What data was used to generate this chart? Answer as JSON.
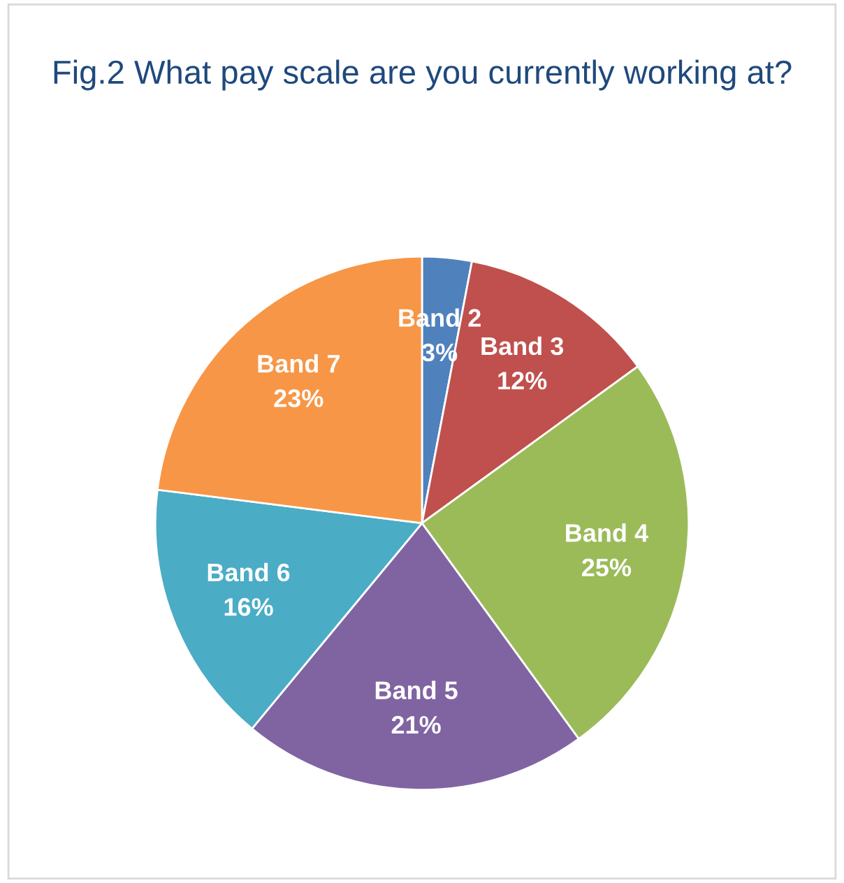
{
  "chart_data": {
    "type": "pie",
    "title": "Fig.2 What pay scale are you currently working at?",
    "categories": [
      "Band 2",
      "Band 3",
      "Band 4",
      "Band 5",
      "Band 6",
      "Band 7"
    ],
    "values": [
      3,
      12,
      25,
      21,
      16,
      23
    ],
    "value_labels": [
      "3%",
      "12%",
      "25%",
      "21%",
      "16%",
      "23%"
    ],
    "colors": [
      "#4f81bd",
      "#c0504d",
      "#9bbb59",
      "#8064a2",
      "#4bacc6",
      "#f79646"
    ],
    "legend": false
  }
}
